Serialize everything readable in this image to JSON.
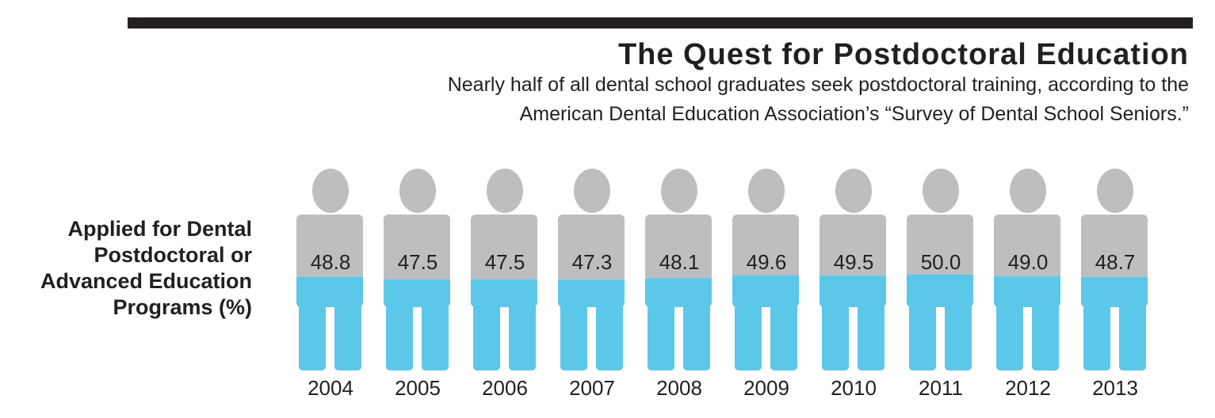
{
  "chart_data": {
    "type": "bar",
    "style": "pictogram",
    "title": "The Quest for Postdoctoral Education",
    "subtitle_lines": [
      "Nearly half of all dental school graduates seek postdoctoral training, according to the",
      "American Dental Education Association’s “Survey of Dental School Seniors.”"
    ],
    "ylabel_lines": [
      "Applied for Dental",
      "Postdoctoral or",
      "Advanced Education",
      "Programs (%)"
    ],
    "categories": [
      "2004",
      "2005",
      "2006",
      "2007",
      "2008",
      "2009",
      "2010",
      "2011",
      "2012",
      "2013"
    ],
    "values": [
      48.8,
      47.5,
      47.5,
      47.3,
      48.1,
      49.6,
      49.5,
      50.0,
      49.0,
      48.7
    ],
    "value_labels": [
      "48.8",
      "47.5",
      "47.5",
      "47.3",
      "48.1",
      "49.6",
      "49.5",
      "50.0",
      "49.0",
      "48.7"
    ],
    "ylim": [
      0,
      100
    ],
    "colors": {
      "empty": "#bcbec0",
      "fill": "#5bc8ea",
      "text": "#231f20"
    }
  }
}
